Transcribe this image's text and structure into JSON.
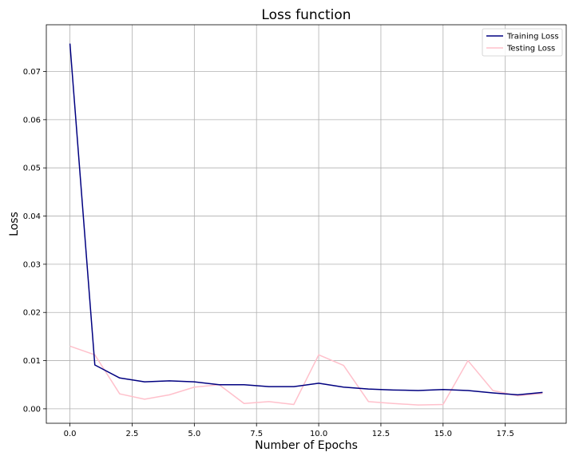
{
  "chart_data": {
    "type": "line",
    "title": "Loss function",
    "xlabel": "Number of Epochs",
    "ylabel": "Loss",
    "xlim": [
      -0.95,
      19.95
    ],
    "ylim": [
      -0.003,
      0.0797
    ],
    "xticks": [
      0.0,
      2.5,
      5.0,
      7.5,
      10.0,
      12.5,
      15.0,
      17.5
    ],
    "xtick_labels": [
      "0.0",
      "2.5",
      "5.0",
      "7.5",
      "10.0",
      "12.5",
      "15.0",
      "17.5"
    ],
    "yticks": [
      0.0,
      0.01,
      0.02,
      0.03,
      0.04,
      0.05,
      0.06,
      0.07
    ],
    "ytick_labels": [
      "0.00",
      "0.01",
      "0.02",
      "0.03",
      "0.04",
      "0.05",
      "0.06",
      "0.07"
    ],
    "grid": true,
    "legend": "top-right",
    "x": [
      0,
      1,
      2,
      3,
      4,
      5,
      6,
      7,
      8,
      9,
      10,
      11,
      12,
      13,
      14,
      15,
      16,
      17,
      18,
      19
    ],
    "series": [
      {
        "name": "Training Loss",
        "color": "#000080",
        "values": [
          0.0758,
          0.0091,
          0.0064,
          0.0056,
          0.0058,
          0.0056,
          0.005,
          0.005,
          0.0046,
          0.0046,
          0.0053,
          0.0045,
          0.0041,
          0.0039,
          0.0038,
          0.004,
          0.0038,
          0.0033,
          0.0029,
          0.0034
        ]
      },
      {
        "name": "Testing Loss",
        "color": "#ffc0cb",
        "values": [
          0.013,
          0.0112,
          0.0031,
          0.002,
          0.0029,
          0.0045,
          0.005,
          0.0011,
          0.0015,
          0.0009,
          0.0112,
          0.009,
          0.0015,
          0.0011,
          0.0008,
          0.0009,
          0.01,
          0.0038,
          0.0027,
          0.0032
        ]
      }
    ]
  }
}
